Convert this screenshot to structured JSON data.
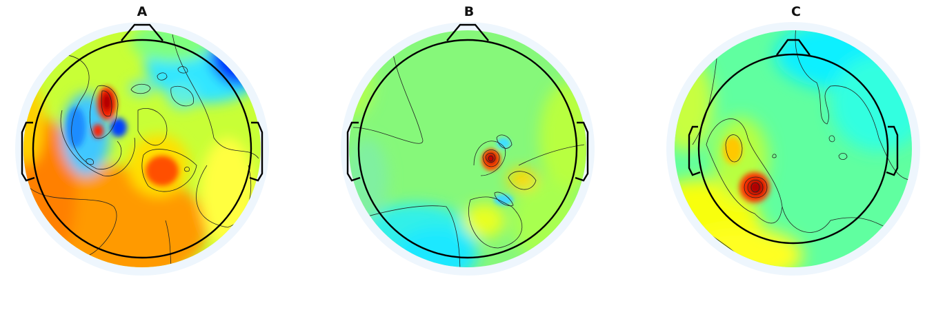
{
  "panels": [
    {
      "label": "A"
    },
    {
      "label": "B"
    },
    {
      "label": "C"
    }
  ],
  "colormap": {
    "name": "jet",
    "stops": [
      "#00007f",
      "#0000ff",
      "#00ffff",
      "#7fff7f",
      "#ffff00",
      "#ff7f00",
      "#ff0000",
      "#7f0000"
    ]
  },
  "colors": {
    "halo": "#eef6fd",
    "outline": "#000000",
    "contour": "#222222"
  },
  "icons": [
    "head-outline-icon",
    "nose-icon",
    "ear-icon"
  ]
}
